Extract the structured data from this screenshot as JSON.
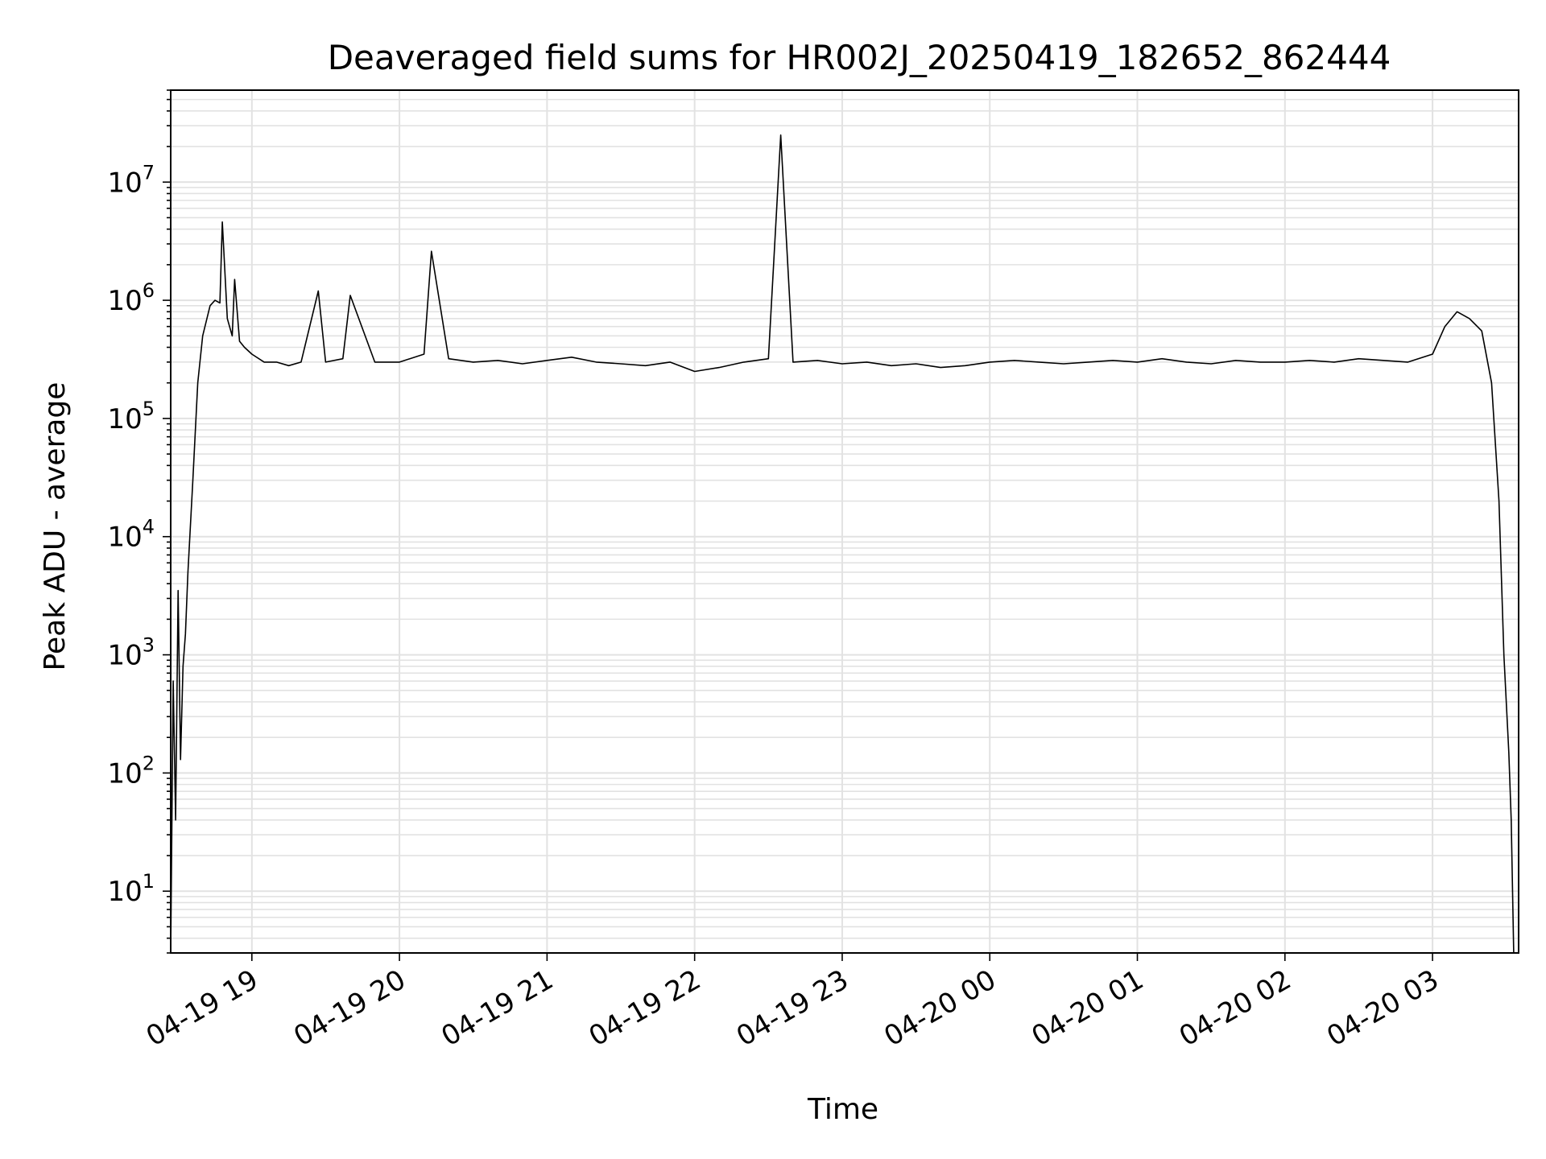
{
  "chart_data": {
    "type": "line",
    "title": "Deaveraged field sums for HR002J_20250419_182652_862444",
    "xlabel": "Time",
    "ylabel": "Peak ADU - average",
    "xscale": "time",
    "yscale": "log",
    "xlim": [
      "2025-04-19 18:27",
      "2025-04-20 03:35"
    ],
    "ylim": [
      3,
      60000000
    ],
    "grid": true,
    "legend": "none",
    "x_ticks": [
      "04-19 19",
      "04-19 20",
      "04-19 21",
      "04-19 22",
      "04-19 23",
      "04-20 00",
      "04-20 01",
      "04-20 02",
      "04-20 03"
    ],
    "y_ticks": [
      {
        "value": 10,
        "base": "10",
        "exp": "1"
      },
      {
        "value": 100,
        "base": "10",
        "exp": "2"
      },
      {
        "value": 1000,
        "base": "10",
        "exp": "3"
      },
      {
        "value": 10000,
        "base": "10",
        "exp": "4"
      },
      {
        "value": 100000,
        "base": "10",
        "exp": "5"
      },
      {
        "value": 1000000,
        "base": "10",
        "exp": "6"
      },
      {
        "value": 10000000,
        "base": "10",
        "exp": "7"
      }
    ],
    "series": [
      {
        "color": "#000000",
        "x": [
          "2025-04-19 18:27",
          "2025-04-19 18:28",
          "2025-04-19 18:29",
          "2025-04-19 18:30",
          "2025-04-19 18:31",
          "2025-04-19 18:32",
          "2025-04-19 18:33",
          "2025-04-19 18:34",
          "2025-04-19 18:36",
          "2025-04-19 18:38",
          "2025-04-19 18:40",
          "2025-04-19 18:43",
          "2025-04-19 18:45",
          "2025-04-19 18:47",
          "2025-04-19 18:48",
          "2025-04-19 18:50",
          "2025-04-19 18:52",
          "2025-04-19 18:53",
          "2025-04-19 18:55",
          "2025-04-19 18:57",
          "2025-04-19 19:00",
          "2025-04-19 19:05",
          "2025-04-19 19:10",
          "2025-04-19 19:15",
          "2025-04-19 19:20",
          "2025-04-19 19:27",
          "2025-04-19 19:30",
          "2025-04-19 19:37",
          "2025-04-19 19:40",
          "2025-04-19 19:50",
          "2025-04-19 20:00",
          "2025-04-19 20:10",
          "2025-04-19 20:13",
          "2025-04-19 20:20",
          "2025-04-19 20:30",
          "2025-04-19 20:40",
          "2025-04-19 20:50",
          "2025-04-19 21:00",
          "2025-04-19 21:10",
          "2025-04-19 21:20",
          "2025-04-19 21:30",
          "2025-04-19 21:40",
          "2025-04-19 21:50",
          "2025-04-19 22:00",
          "2025-04-19 22:10",
          "2025-04-19 22:20",
          "2025-04-19 22:30",
          "2025-04-19 22:35",
          "2025-04-19 22:40",
          "2025-04-19 22:50",
          "2025-04-19 23:00",
          "2025-04-19 23:10",
          "2025-04-19 23:20",
          "2025-04-19 23:30",
          "2025-04-19 23:40",
          "2025-04-19 23:50",
          "2025-04-20 00:00",
          "2025-04-20 00:10",
          "2025-04-20 00:20",
          "2025-04-20 00:30",
          "2025-04-20 00:40",
          "2025-04-20 00:50",
          "2025-04-20 01:00",
          "2025-04-20 01:10",
          "2025-04-20 01:20",
          "2025-04-20 01:30",
          "2025-04-20 01:40",
          "2025-04-20 01:50",
          "2025-04-20 02:00",
          "2025-04-20 02:10",
          "2025-04-20 02:20",
          "2025-04-20 02:30",
          "2025-04-20 02:40",
          "2025-04-20 02:50",
          "2025-04-20 03:00",
          "2025-04-20 03:05",
          "2025-04-20 03:10",
          "2025-04-20 03:15",
          "2025-04-20 03:20",
          "2025-04-20 03:24",
          "2025-04-20 03:27",
          "2025-04-20 03:29",
          "2025-04-20 03:31",
          "2025-04-20 03:32",
          "2025-04-20 03:33",
          "2025-04-20 03:34"
        ],
        "y": [
          3,
          600,
          40,
          3500,
          130,
          800,
          1500,
          5000,
          30000,
          200000,
          500000,
          900000,
          1000000,
          950000,
          4600000,
          700000,
          500000,
          1500000,
          450000,
          400000,
          350000,
          300000,
          300000,
          280000,
          300000,
          1200000,
          300000,
          320000,
          1100000,
          300000,
          300000,
          350000,
          2600000,
          320000,
          300000,
          310000,
          290000,
          310000,
          330000,
          300000,
          290000,
          280000,
          300000,
          250000,
          270000,
          300000,
          320000,
          25000000,
          300000,
          310000,
          290000,
          300000,
          280000,
          290000,
          270000,
          280000,
          300000,
          310000,
          300000,
          290000,
          300000,
          310000,
          300000,
          320000,
          300000,
          290000,
          310000,
          300000,
          300000,
          310000,
          300000,
          320000,
          310000,
          300000,
          350000,
          600000,
          800000,
          700000,
          550000,
          200000,
          20000,
          1000,
          150,
          40,
          3,
          3
        ]
      }
    ]
  }
}
